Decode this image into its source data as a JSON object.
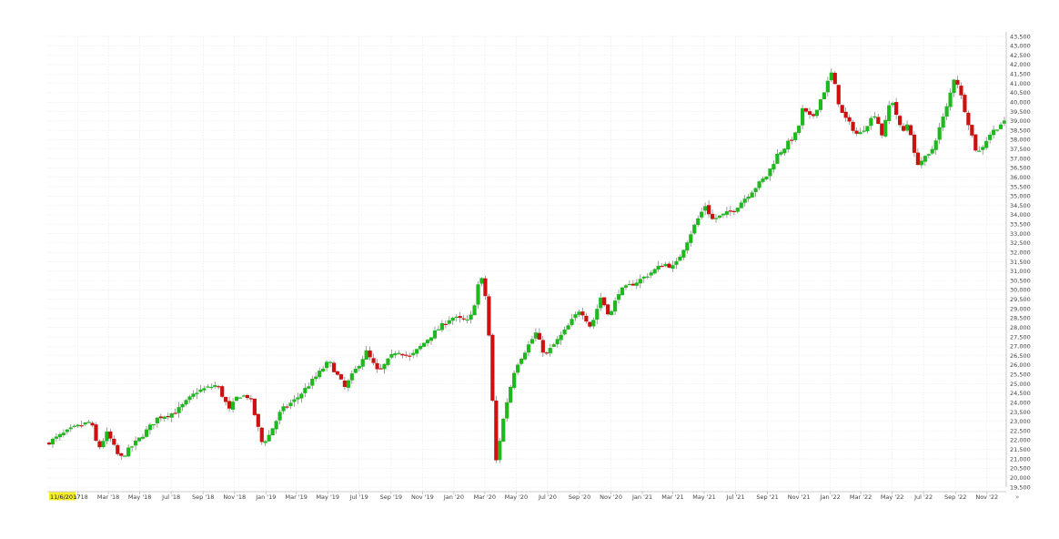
{
  "colors": {
    "up": "#1fb81f",
    "down": "#cc1111",
    "grid": "#e6e6e6",
    "axis": "#bdbdbd",
    "start_highlight": "#f4ef2a"
  },
  "start_label": "11/6/2017",
  "chart_data": {
    "type": "candlestick",
    "ylim": [
      19500,
      43500
    ],
    "y_ticks": [
      "19,500",
      "20,000",
      "20,500",
      "21,000",
      "21,500",
      "22,000",
      "22,500",
      "23,000",
      "23,500",
      "24,000",
      "24,500",
      "25,000",
      "25,500",
      "26,000",
      "26,500",
      "27,000",
      "27,500",
      "28,000",
      "28,500",
      "29,000",
      "29,500",
      "30,000",
      "30,500",
      "31,000",
      "31,500",
      "32,000",
      "32,500",
      "33,000",
      "33,500",
      "34,000",
      "34,500",
      "35,000",
      "35,500",
      "36,000",
      "36,500",
      "37,000",
      "37,500",
      "38,000",
      "38,500",
      "39,000",
      "39,500",
      "40,000",
      "40,500",
      "41,000",
      "41,500",
      "42,000",
      "42,500",
      "43,000",
      "43,500"
    ],
    "x_ticks": [
      "Jan '18",
      "Mar '18",
      "May '18",
      "Jul '18",
      "Sep '18",
      "Nov '18",
      "Jan '19",
      "Mar '19",
      "May '19",
      "Jul '19",
      "Sep '19",
      "Nov '19",
      "Jan '20",
      "Mar '20",
      "May '20",
      "Jul '20",
      "Sep '20",
      "Nov '20",
      "Jan '21",
      "Mar '21",
      "May '21",
      "Jul '21",
      "Sep '21",
      "Nov '21",
      "Jan '22",
      "Mar '22",
      "May '22",
      "Jul '22",
      "Sep '22",
      "Nov '22"
    ],
    "key_points": [
      [
        "2017-11-06",
        21900
      ],
      [
        "2017-12-20",
        22600
      ],
      [
        "2018-01-26",
        23000
      ],
      [
        "2018-02-09",
        21500
      ],
      [
        "2018-02-27",
        22400
      ],
      [
        "2018-03-23",
        21000
      ],
      [
        "2018-05-01",
        22100
      ],
      [
        "2018-06-05",
        23200
      ],
      [
        "2018-07-10",
        23500
      ],
      [
        "2018-08-20",
        24600
      ],
      [
        "2018-09-28",
        24950
      ],
      [
        "2018-10-22",
        23600
      ],
      [
        "2018-11-08",
        24400
      ],
      [
        "2018-12-01",
        24300
      ],
      [
        "2018-12-24",
        21900
      ],
      [
        "2019-01-04",
        22100
      ],
      [
        "2019-01-31",
        23600
      ],
      [
        "2019-03-01",
        24200
      ],
      [
        "2019-04-12",
        25500
      ],
      [
        "2019-05-03",
        26200
      ],
      [
        "2019-06-03",
        24800
      ],
      [
        "2019-07-15",
        26700
      ],
      [
        "2019-08-07",
        25600
      ],
      [
        "2019-09-12",
        26800
      ],
      [
        "2019-10-08",
        26400
      ],
      [
        "2019-11-15",
        27500
      ],
      [
        "2019-12-27",
        28550
      ],
      [
        "2020-01-31",
        28300
      ],
      [
        "2020-02-12",
        29500
      ],
      [
        "2020-02-21",
        30900
      ],
      [
        "2020-03-06",
        29200
      ],
      [
        "2020-03-13",
        25400
      ],
      [
        "2020-03-23",
        20900
      ],
      [
        "2020-04-09",
        23600
      ],
      [
        "2020-04-29",
        25900
      ],
      [
        "2020-06-08",
        27700
      ],
      [
        "2020-06-26",
        26500
      ],
      [
        "2020-08-03",
        27800
      ],
      [
        "2020-09-02",
        29000
      ],
      [
        "2020-09-23",
        28000
      ],
      [
        "2020-10-12",
        29600
      ],
      [
        "2020-10-30",
        28600
      ],
      [
        "2020-11-16",
        29900
      ],
      [
        "2020-12-31",
        30600
      ],
      [
        "2021-02-12",
        31400
      ],
      [
        "2021-03-04",
        31200
      ],
      [
        "2021-04-15",
        33600
      ],
      [
        "2021-05-07",
        34700
      ],
      [
        "2021-05-12",
        33700
      ],
      [
        "2021-06-25",
        34200
      ],
      [
        "2021-07-30",
        35200
      ],
      [
        "2021-08-31",
        36100
      ],
      [
        "2021-09-20",
        37200
      ],
      [
        "2021-10-04",
        37600
      ],
      [
        "2021-10-29",
        38400
      ],
      [
        "2021-11-08",
        39600
      ],
      [
        "2021-11-26",
        39100
      ],
      [
        "2021-12-17",
        40400
      ],
      [
        "2022-01-04",
        41600
      ],
      [
        "2022-01-21",
        39500
      ],
      [
        "2022-02-24",
        38200
      ],
      [
        "2022-03-29",
        39400
      ],
      [
        "2022-04-12",
        38200
      ],
      [
        "2022-04-29",
        40300
      ],
      [
        "2022-05-20",
        38300
      ],
      [
        "2022-06-02",
        39000
      ],
      [
        "2022-06-16",
        36700
      ],
      [
        "2022-07-14",
        37200
      ],
      [
        "2022-08-16",
        39800
      ],
      [
        "2022-08-31",
        41500
      ],
      [
        "2022-09-27",
        38800
      ],
      [
        "2022-10-13",
        37200
      ],
      [
        "2022-11-07",
        38300
      ],
      [
        "2022-11-30",
        38900
      ]
    ]
  }
}
